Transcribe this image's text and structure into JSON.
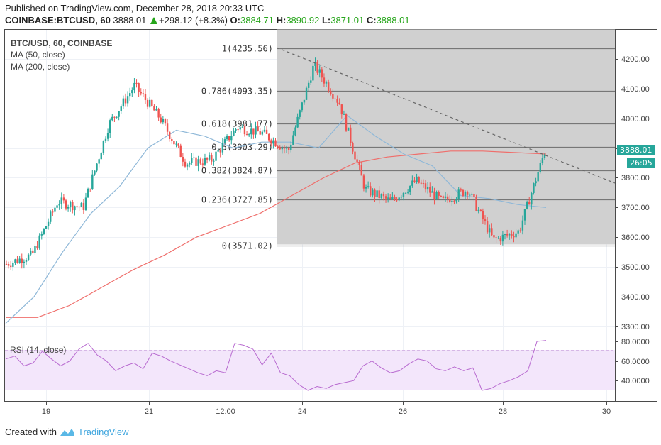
{
  "header": {
    "published": "Published on TradingView.com, December 28, 2018 20:33 UTC",
    "symbol": "COINBASE:BTCUSD, 60",
    "last": "3888.01",
    "change": "+298.12 (+8.3%)",
    "open_label": "O:",
    "open": "3884.71",
    "high_label": "H:",
    "high": "3890.92",
    "low_label": "L:",
    "low": "3871.01",
    "close_label": "C:",
    "close": "3888.01"
  },
  "legend": {
    "title": "BTC/USD, 60, COINBASE",
    "ma50": "MA (50, close)",
    "ma200": "MA (200, close)",
    "rsi": "RSI (14, close)"
  },
  "price_tag": {
    "price": "3888.01",
    "countdown": "26:05"
  },
  "footer": {
    "created_with": "Created with",
    "brand": "TradingView"
  },
  "colors": {
    "up": "#26a69a",
    "down": "#ef5350",
    "ma50": "#8fb8d8",
    "ma200": "#ef6e6b",
    "fib_zone": "#d0d0d0",
    "rsi_line": "#b86ad0",
    "rsi_band": "#f3e6fb",
    "header_green": "#26a51a"
  },
  "chart_data": [
    {
      "type": "candlestick",
      "title": "BTC/USD, 60, COINBASE",
      "xlabel": "",
      "ylabel": "",
      "x_ticks": [
        "19",
        "21",
        "12:00",
        "24",
        "26",
        "28",
        "30"
      ],
      "y_ticks": [
        3300,
        3400,
        3500,
        3600,
        3700,
        3800,
        3900,
        4000,
        4100,
        4200
      ],
      "ylim": [
        3260,
        4290
      ],
      "grid": true,
      "last_price": 3888.01,
      "fibonacci_retracement": [
        {
          "level": "1",
          "price": 4235.56
        },
        {
          "level": "0.786",
          "price": 4093.35
        },
        {
          "level": "0.618",
          "price": 3981.77
        },
        {
          "level": "0.5",
          "price": 3903.29
        },
        {
          "level": "0.382",
          "price": 3824.87
        },
        {
          "level": "0.236",
          "price": 3727.85
        },
        {
          "level": "0",
          "price": 3571.02
        }
      ],
      "approx_close_path": {
        "x": [
          "18 12:00",
          "19 00:00",
          "19 12:00",
          "20 00:00",
          "20 12:00",
          "21 00:00",
          "21 12:00",
          "22 00:00",
          "22 12:00",
          "23 00:00",
          "23 12:00",
          "24 00:00",
          "24 12:00",
          "25 00:00",
          "25 12:00",
          "26 00:00",
          "26 12:00",
          "27 00:00",
          "27 12:00",
          "28 00:00",
          "28 12:00",
          "28 20:00"
        ],
        "values": [
          3510,
          3540,
          3720,
          3700,
          3980,
          4110,
          4000,
          3850,
          3860,
          3970,
          3950,
          3890,
          4180,
          4050,
          3760,
          3720,
          3790,
          3720,
          3760,
          3590,
          3620,
          3888
        ]
      },
      "series": [
        {
          "name": "MA (50, close)",
          "approx_values": [
            3310,
            3400,
            3550,
            3680,
            3770,
            3900,
            3960,
            3940,
            3900,
            3920,
            3920,
            3900,
            4010,
            3940,
            3880,
            3840,
            3740,
            3730,
            3710,
            3700
          ]
        },
        {
          "name": "MA (200, close)",
          "approx_values": [
            3330,
            3330,
            3370,
            3430,
            3490,
            3540,
            3600,
            3640,
            3680,
            3740,
            3800,
            3850,
            3870,
            3880,
            3890,
            3890,
            3885,
            3880
          ]
        }
      ],
      "trendline": {
        "from_price": 4235.56,
        "to_price": 3780,
        "style": "dashed"
      }
    },
    {
      "type": "line",
      "title": "RSI (14, close)",
      "y_ticks": [
        40,
        60,
        80
      ],
      "band": [
        30,
        70
      ],
      "approx_values": [
        62,
        65,
        55,
        58,
        70,
        62,
        55,
        60,
        72,
        78,
        66,
        60,
        50,
        55,
        58,
        52,
        68,
        65,
        60,
        56,
        52,
        48,
        45,
        50,
        48,
        78,
        76,
        72,
        56,
        68,
        48,
        45,
        36,
        30,
        34,
        32,
        36,
        38,
        40,
        55,
        60,
        53,
        48,
        50,
        57,
        62,
        60,
        52,
        50,
        54,
        50,
        53,
        30,
        32,
        37,
        40,
        44,
        50,
        80,
        81
      ]
    }
  ]
}
